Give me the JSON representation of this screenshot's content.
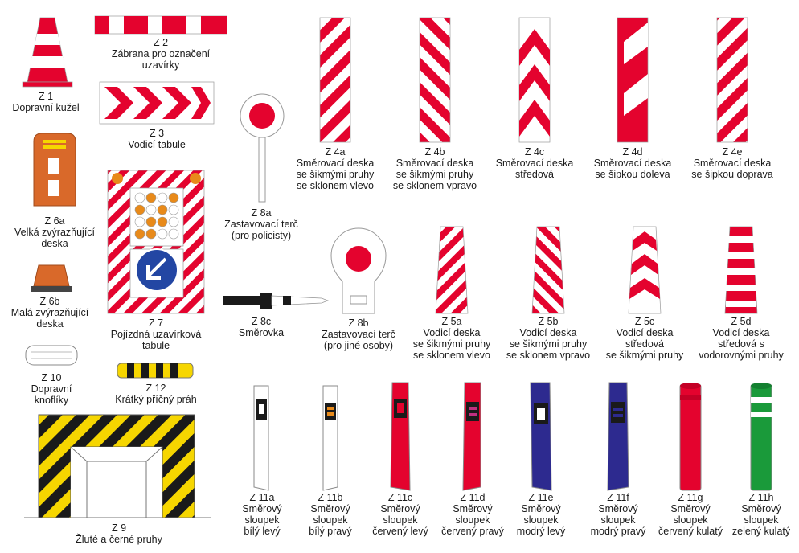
{
  "colors": {
    "red": "#e4032e",
    "white": "#ffffff",
    "orange": "#d9692a",
    "yellow": "#f6d600",
    "black": "#1a1a1a",
    "blue": "#2d2a8f",
    "green": "#1a9a3a",
    "panel_blue": "#2346a3"
  },
  "signs": [
    {
      "code": "Z 1",
      "lines": [
        "Dopravní kužel"
      ]
    },
    {
      "code": "Z 2",
      "lines": [
        "Zábrana pro označení",
        "uzavírky"
      ]
    },
    {
      "code": "Z 3",
      "lines": [
        "Vodicí tabule"
      ]
    },
    {
      "code": "Z 4a",
      "lines": [
        "Směrovací deska",
        "se šikmými pruhy",
        "se sklonem vlevo"
      ]
    },
    {
      "code": "Z 4b",
      "lines": [
        "Směrovací deska",
        "se šikmými pruhy",
        "se sklonem vpravo"
      ]
    },
    {
      "code": "Z 4c",
      "lines": [
        "Směrovací deska",
        "středová"
      ]
    },
    {
      "code": "Z 4d",
      "lines": [
        "Směrovací deska",
        "se šipkou doleva"
      ]
    },
    {
      "code": "Z 4e",
      "lines": [
        "Směrovací deska",
        "se šipkou doprava"
      ]
    },
    {
      "code": "Z 6a",
      "lines": [
        "Velká zvýrazňující",
        "deska"
      ]
    },
    {
      "code": "Z 6b",
      "lines": [
        "Malá zvýrazňující",
        "deska"
      ]
    },
    {
      "code": "Z 7",
      "lines": [
        "Pojízdná uzavírková",
        "tabule"
      ]
    },
    {
      "code": "Z 8a",
      "lines": [
        "Zastavovací terč",
        "(pro policisty)"
      ]
    },
    {
      "code": "Z 8b",
      "lines": [
        "Zastavovací terč",
        "(pro jiné osoby)"
      ]
    },
    {
      "code": "Z 8c",
      "lines": [
        "Směrovka"
      ]
    },
    {
      "code": "Z 5a",
      "lines": [
        "Vodicí deska",
        "se šikmými pruhy",
        "se sklonem vlevo"
      ]
    },
    {
      "code": "Z 5b",
      "lines": [
        "Vodicí deska",
        "se šikmými pruhy",
        "se sklonem vpravo"
      ]
    },
    {
      "code": "Z 5c",
      "lines": [
        "Vodicí deska",
        "středová",
        "se šikmými pruhy"
      ]
    },
    {
      "code": "Z 5d",
      "lines": [
        "Vodicí deska",
        "středová s",
        "vodorovnými pruhy"
      ]
    },
    {
      "code": "Z 10",
      "lines": [
        "Dopravní",
        "knoflíky"
      ]
    },
    {
      "code": "Z 12",
      "lines": [
        "Krátký příčný práh"
      ]
    },
    {
      "code": "Z 9",
      "lines": [
        "Žluté a černé pruhy"
      ]
    },
    {
      "code": "Z 11a",
      "lines": [
        "Směrový",
        "sloupek",
        "bílý levý"
      ]
    },
    {
      "code": "Z 11b",
      "lines": [
        "Směrový",
        "sloupek",
        "bílý pravý"
      ]
    },
    {
      "code": "Z 11c",
      "lines": [
        "Směrový",
        "sloupek",
        "červený levý"
      ]
    },
    {
      "code": "Z 11d",
      "lines": [
        "Směrový",
        "sloupek",
        "červený pravý"
      ]
    },
    {
      "code": "Z 11e",
      "lines": [
        "Směrový",
        "sloupek",
        "modrý levý"
      ]
    },
    {
      "code": "Z 11f",
      "lines": [
        "Směrový",
        "sloupek",
        "modrý pravý"
      ]
    },
    {
      "code": "Z 11g",
      "lines": [
        "Směrový",
        "sloupek",
        "červený kulatý"
      ]
    },
    {
      "code": "Z 11h",
      "lines": [
        "Směrový",
        "sloupek",
        "zelený kulatý"
      ]
    }
  ]
}
